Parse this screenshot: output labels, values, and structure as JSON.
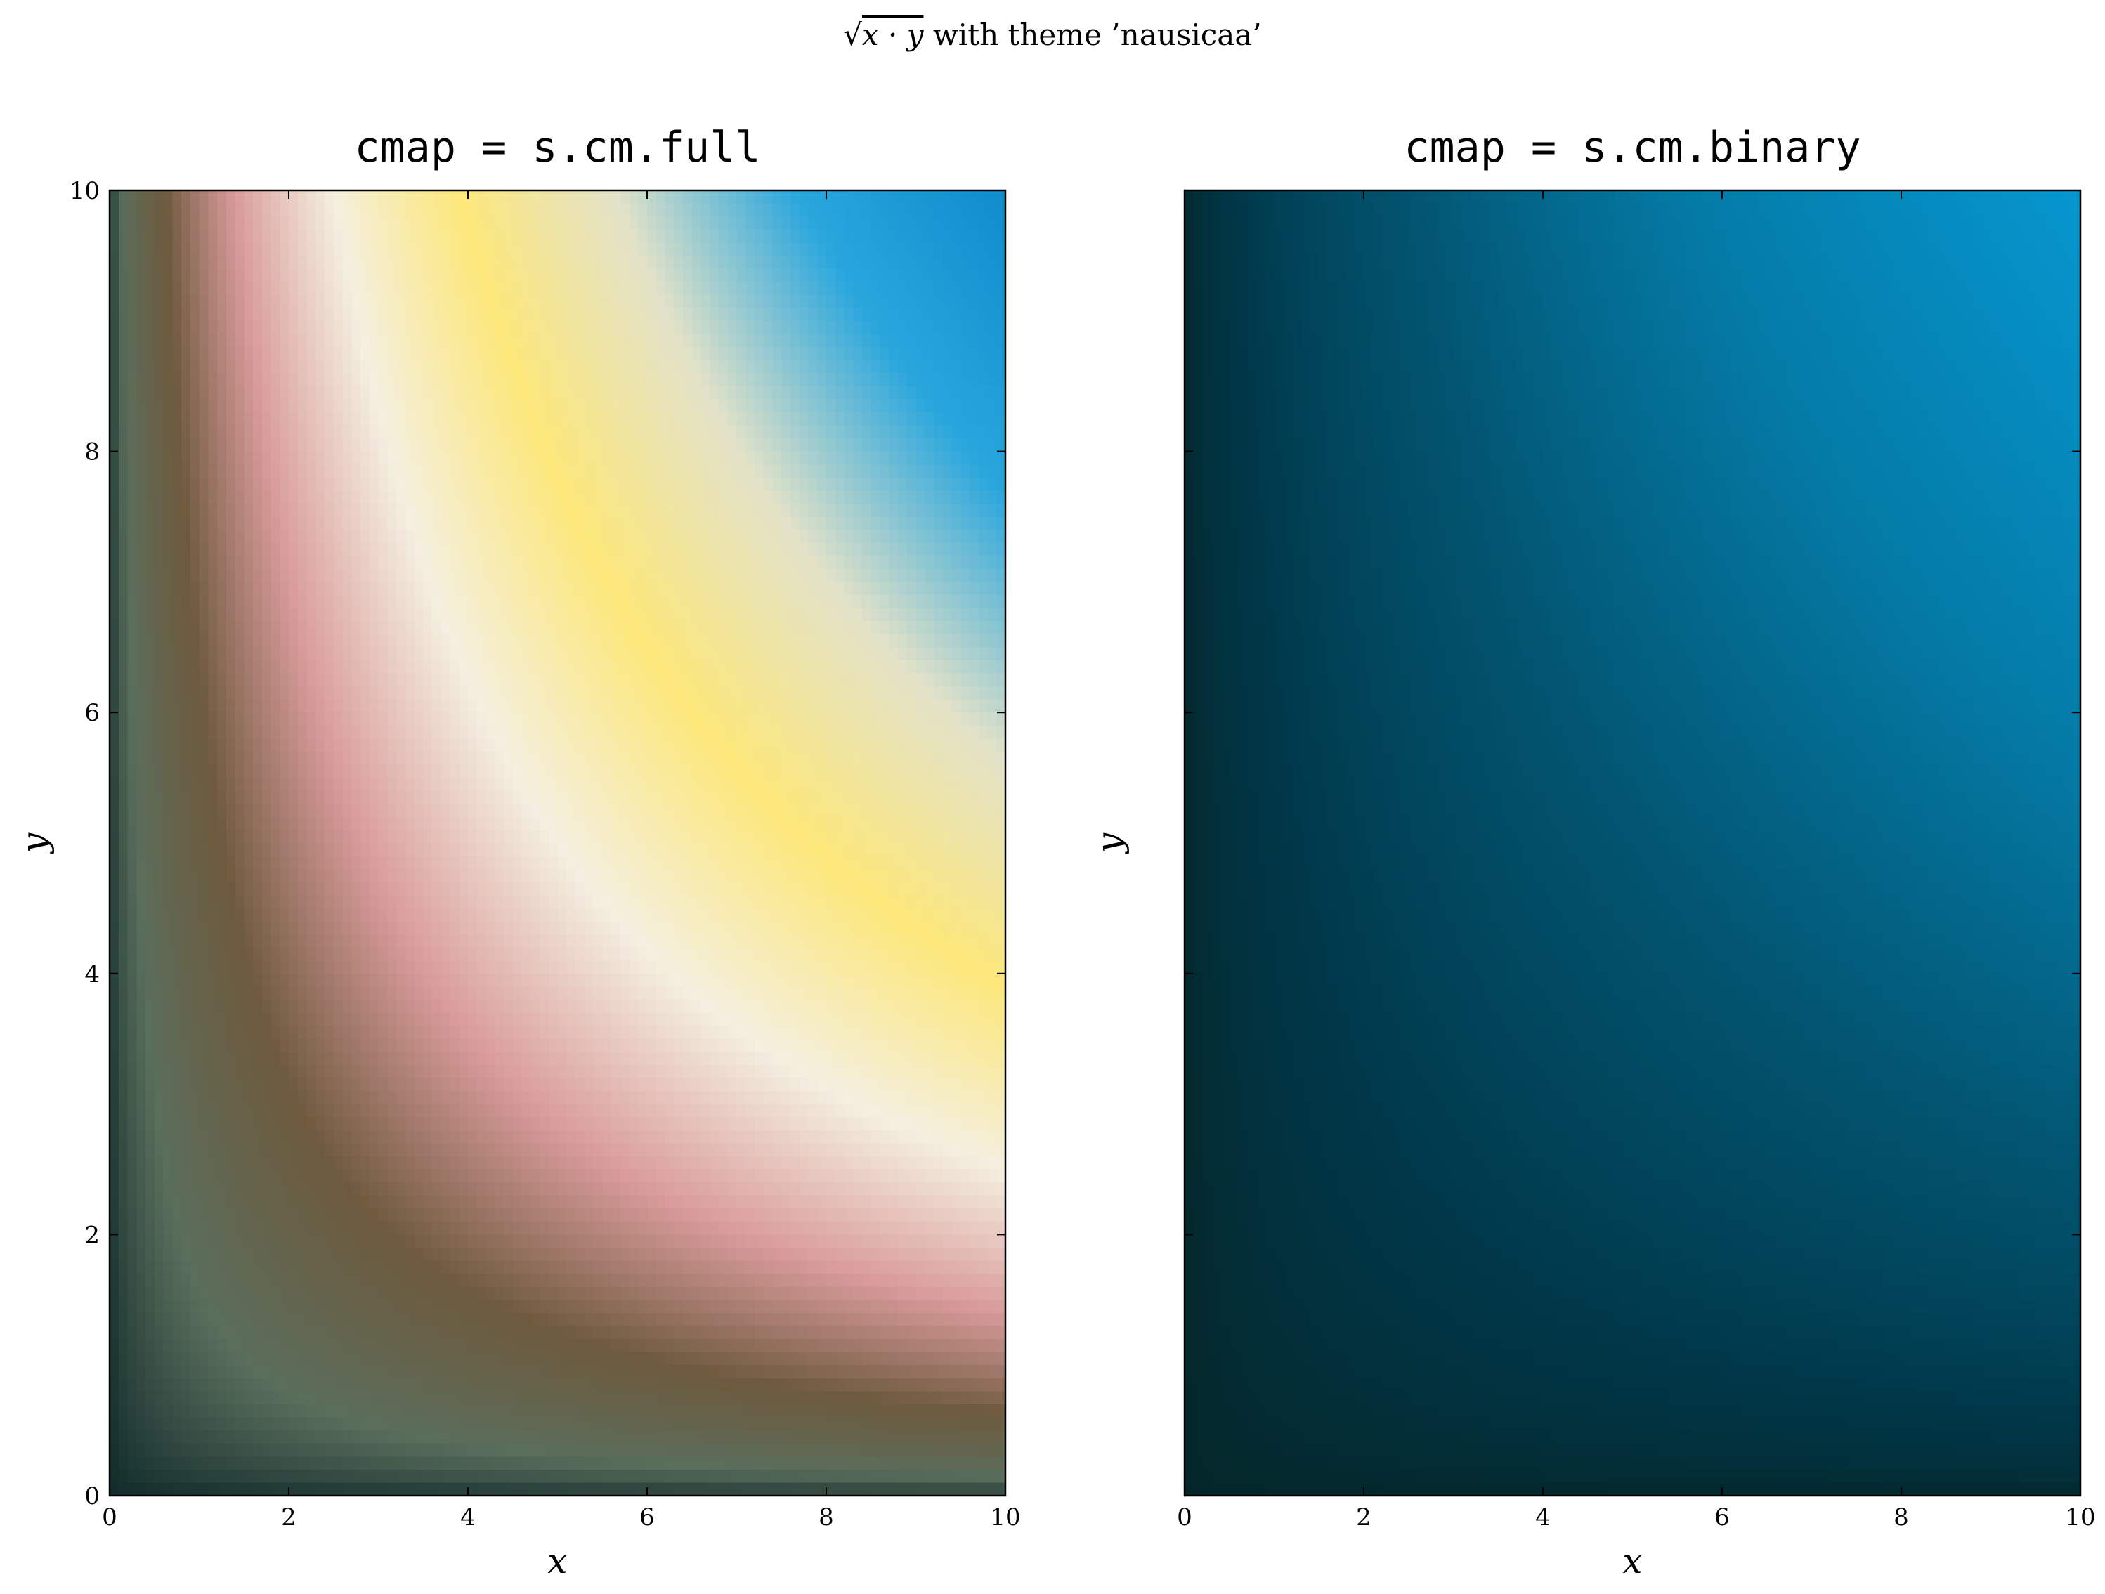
{
  "suptitle": {
    "radical": "√",
    "expr": "x · y",
    "rest": " with theme ’nausicaa’"
  },
  "chart_data": [
    {
      "type": "heatmap",
      "title": "cmap = s.cm.full",
      "xlabel": "x",
      "ylabel": "y",
      "xlim": [
        0,
        10
      ],
      "ylim": [
        0,
        10
      ],
      "x_ticks": [
        "0",
        "2",
        "4",
        "6",
        "8",
        "10"
      ],
      "y_ticks": [
        "0",
        "2",
        "4",
        "6",
        "8",
        "10"
      ],
      "function": "sqrt(x*y)",
      "value_range": [
        0,
        10
      ],
      "colormap": [
        "#0f2a2a",
        "#5a6e5c",
        "#6e5a3e",
        "#d99b9b",
        "#f4efe0",
        "#fce77a",
        "#e3e2c8",
        "#2aa6dd",
        "#0e8ccc"
      ]
    },
    {
      "type": "heatmap",
      "title": "cmap = s.cm.binary",
      "xlabel": "x",
      "ylabel": "y",
      "xlim": [
        0,
        10
      ],
      "ylim": [
        0,
        10
      ],
      "x_ticks": [
        "0",
        "2",
        "4",
        "6",
        "8",
        "10"
      ],
      "y_ticks": [],
      "function": "sqrt(x*y)",
      "value_range": [
        0,
        10
      ],
      "colormap": [
        "#042628",
        "#00384a",
        "#025470",
        "#047aa6",
        "#0696cf"
      ]
    }
  ]
}
